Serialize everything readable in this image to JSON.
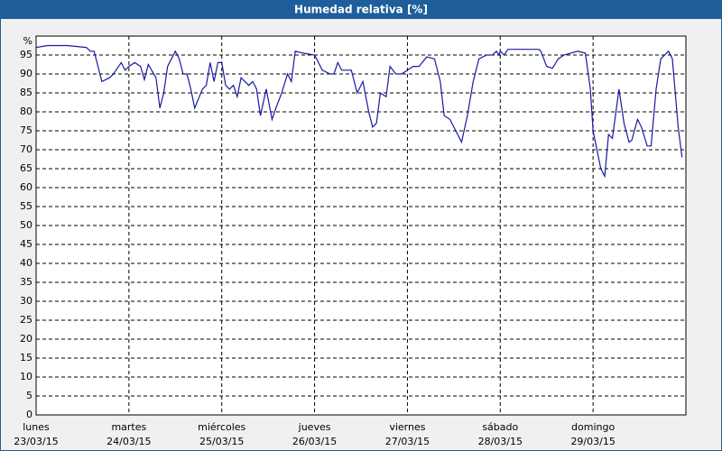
{
  "chart_data": {
    "type": "line",
    "title": "Humedad relativa [%]",
    "ylabel": "%",
    "x": [
      0,
      3,
      8,
      13,
      14,
      15,
      17,
      19,
      20,
      22,
      23,
      24,
      25.5,
      27,
      28,
      29,
      31,
      32,
      33,
      34,
      36,
      37,
      38,
      39,
      40,
      41,
      43,
      44,
      45,
      46,
      47,
      48,
      49,
      50,
      51,
      52,
      53,
      55,
      56,
      57,
      58,
      59.5,
      61,
      62,
      63.5,
      65,
      66,
      67,
      69,
      72,
      73,
      74,
      76,
      77,
      78,
      79,
      81.5,
      83,
      84.5,
      86,
      87,
      88,
      89,
      90.5,
      91.5,
      93,
      94.5,
      96,
      97.5,
      99,
      101,
      103,
      104.5,
      105.5,
      107,
      110,
      111.5,
      113,
      114.5,
      116.5,
      118,
      119,
      119.7,
      120,
      121,
      122,
      130,
      130.5,
      132,
      133.5,
      135,
      136.5,
      140,
      142,
      143.3,
      144,
      146,
      147,
      148,
      149,
      150.7,
      152,
      153.3,
      154,
      155.5,
      156.5,
      158,
      159,
      160.3,
      161.5,
      163.5,
      164.5,
      166,
      167
    ],
    "values": [
      97,
      97.5,
      97.5,
      97,
      96,
      96,
      88,
      89,
      90,
      93,
      91,
      92,
      93,
      92,
      88.5,
      92.5,
      89,
      81,
      85,
      92,
      96,
      94,
      90,
      90,
      86,
      81,
      86,
      87,
      93,
      88,
      93,
      93,
      87,
      86,
      87,
      84,
      89,
      87,
      88,
      86,
      79,
      86,
      78,
      81,
      85,
      90,
      88,
      96,
      95.5,
      95,
      93,
      91,
      90,
      90,
      93,
      91,
      91,
      85,
      88,
      80,
      76,
      77,
      85,
      84,
      92,
      90,
      90,
      91,
      92,
      92,
      94.5,
      94,
      88,
      79,
      78,
      72,
      79,
      88,
      94,
      95,
      95,
      96,
      95,
      96,
      95,
      96.5,
      96.5,
      96,
      92,
      91.5,
      94,
      95,
      96,
      95.5,
      86,
      75,
      65,
      63,
      74,
      73,
      86,
      77,
      72,
      72.5,
      78,
      76,
      71,
      71,
      86,
      94,
      96,
      94,
      76,
      68
    ],
    "color": "#1a1aa0",
    "xlim": [
      0,
      168
    ],
    "xticks": [
      {
        "value": 0,
        "label": [
          "lunes",
          "23/03/15"
        ]
      },
      {
        "value": 24,
        "label": [
          "martes",
          "24/03/15"
        ]
      },
      {
        "value": 48,
        "label": [
          "miércoles",
          "25/03/15"
        ]
      },
      {
        "value": 72,
        "label": [
          "jueves",
          "26/03/15"
        ]
      },
      {
        "value": 96,
        "label": [
          "viernes",
          "27/03/15"
        ]
      },
      {
        "value": 120,
        "label": [
          "sábado",
          "28/03/15"
        ]
      },
      {
        "value": 144,
        "label": [
          "domingo",
          "29/03/15"
        ]
      }
    ],
    "ylim": [
      0,
      100
    ],
    "yticks": [
      0,
      5,
      10,
      15,
      20,
      25,
      30,
      35,
      40,
      45,
      50,
      55,
      60,
      65,
      70,
      75,
      80,
      85,
      90,
      95
    ],
    "grid": true
  }
}
